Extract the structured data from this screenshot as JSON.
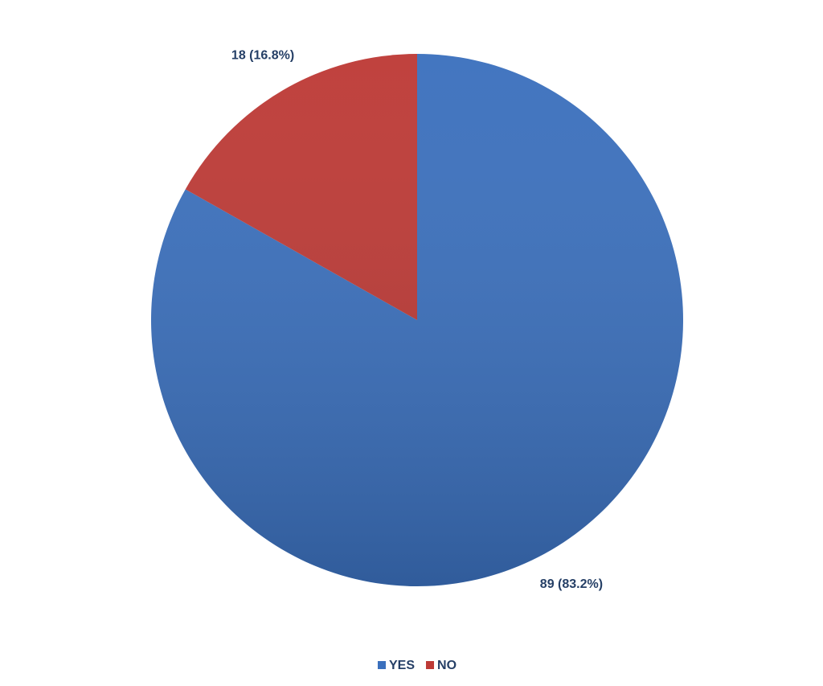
{
  "chart_data": {
    "type": "pie",
    "categories": [
      "YES",
      "NO"
    ],
    "values": [
      89,
      18
    ],
    "value_labels": [
      "89 (83.2%)",
      "18 (16.8%)"
    ],
    "colors": [
      "#3b70bd",
      "#bd3a36"
    ],
    "legend": "bottom"
  }
}
